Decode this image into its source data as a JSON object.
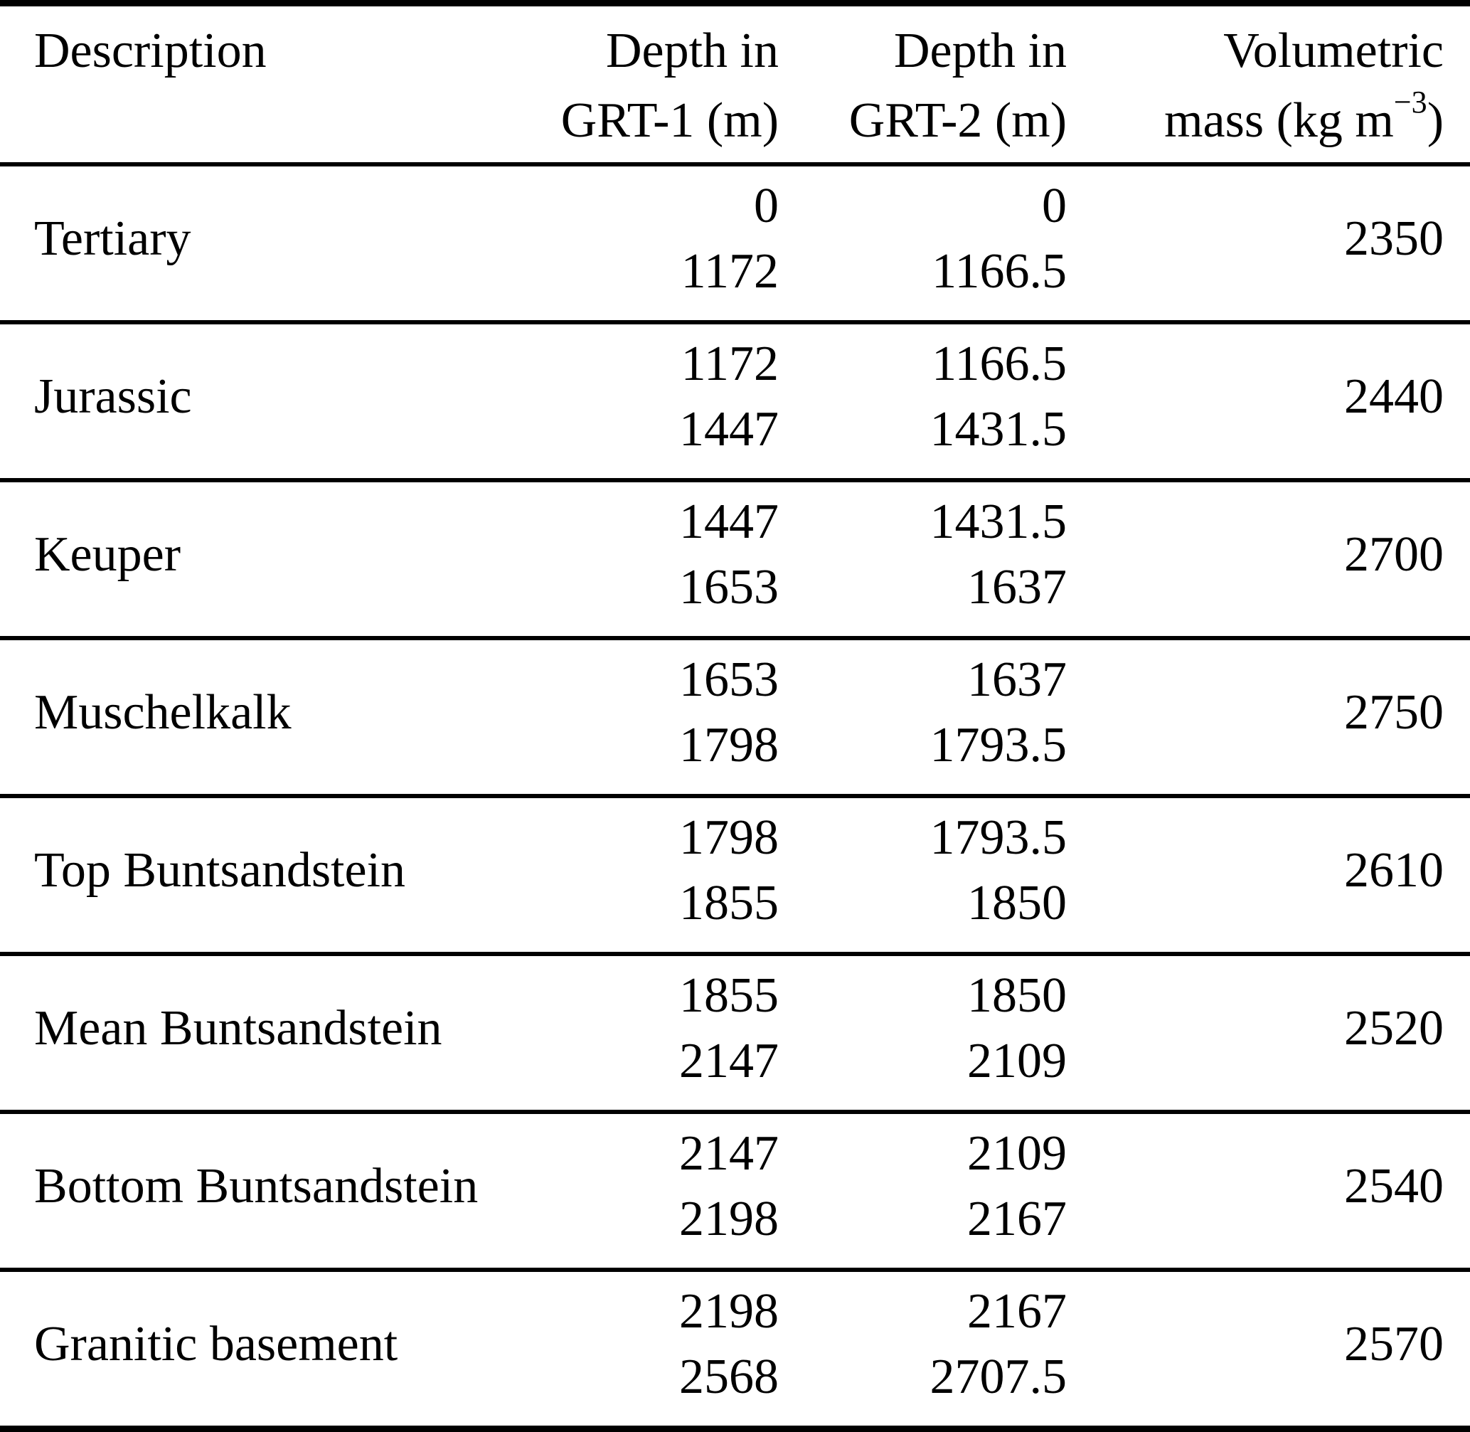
{
  "table": {
    "columns": [
      {
        "id": "description",
        "line1": "Description",
        "line2": ""
      },
      {
        "id": "depth_grt1",
        "line1": "Depth in",
        "line2": "GRT-1 (m)"
      },
      {
        "id": "depth_grt2",
        "line1": "Depth in",
        "line2": "GRT-2 (m)"
      },
      {
        "id": "volumetric_mass",
        "line1": "Volumetric",
        "line2_prefix": "mass (kg m",
        "line2_sup": "−3",
        "line2_suffix": ")"
      }
    ],
    "rows": [
      {
        "description": "Tertiary",
        "grt1_from": "0",
        "grt1_to": "1172",
        "grt2_from": "0",
        "grt2_to": "1166.5",
        "mass": "2350"
      },
      {
        "description": "Jurassic",
        "grt1_from": "1172",
        "grt1_to": "1447",
        "grt2_from": "1166.5",
        "grt2_to": "1431.5",
        "mass": "2440"
      },
      {
        "description": "Keuper",
        "grt1_from": "1447",
        "grt1_to": "1653",
        "grt2_from": "1431.5",
        "grt2_to": "1637",
        "mass": "2700"
      },
      {
        "description": "Muschelkalk",
        "grt1_from": "1653",
        "grt1_to": "1798",
        "grt2_from": "1637",
        "grt2_to": "1793.5",
        "mass": "2750"
      },
      {
        "description": "Top Buntsandstein",
        "grt1_from": "1798",
        "grt1_to": "1855",
        "grt2_from": "1793.5",
        "grt2_to": "1850",
        "mass": "2610"
      },
      {
        "description": "Mean Buntsandstein",
        "grt1_from": "1855",
        "grt1_to": "2147",
        "grt2_from": "1850",
        "grt2_to": "2109",
        "mass": "2520"
      },
      {
        "description": "Bottom Buntsandstein",
        "grt1_from": "2147",
        "grt1_to": "2198",
        "grt2_from": "2109",
        "grt2_to": "2167",
        "mass": "2540"
      },
      {
        "description": "Granitic basement",
        "grt1_from": "2198",
        "grt1_to": "2568",
        "grt2_from": "2167",
        "grt2_to": "2707.5",
        "mass": "2570"
      }
    ],
    "colors": {
      "rule": "#000000",
      "text": "#000000",
      "background": "#ffffff"
    }
  }
}
